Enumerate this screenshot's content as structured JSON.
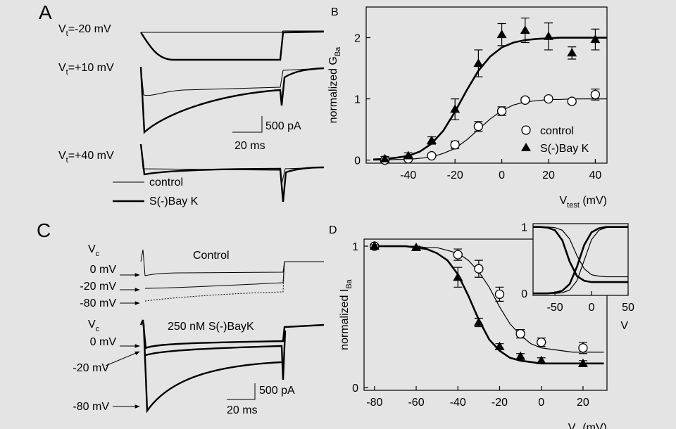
{
  "panel_a": {
    "label": "A",
    "traces": [
      {
        "symbol": "V",
        "subscript": "t",
        "text": "=-20 mV"
      },
      {
        "symbol": "V",
        "subscript": "t",
        "text": "=+10 mV"
      },
      {
        "symbol": "V",
        "subscript": "t",
        "text": "=+40 mV"
      }
    ],
    "legend": [
      "control",
      "S(-)Bay K"
    ],
    "scale": {
      "current": "500 pA",
      "time": "20 ms"
    }
  },
  "panel_c": {
    "label": "C",
    "groups": [
      {
        "symbol": "V",
        "subscript": "c",
        "title": "Control",
        "levels": [
          "0 mV",
          "-20 mV",
          "-80 mV"
        ]
      },
      {
        "symbol": "V",
        "subscript": "c",
        "title": "250 nM S(-)BayK",
        "levels": [
          "0 mV",
          "-20 mV",
          "-80 mV"
        ]
      }
    ],
    "scale": {
      "current": "500 pA",
      "time": "20 ms"
    }
  },
  "chart_data": [
    {
      "type": "scatter",
      "panel": "B",
      "x_label": {
        "text": "V",
        "subscript": "test",
        "suffix": " (mV)"
      },
      "y_label": {
        "text": "normalized G",
        "subscript": "Ba"
      },
      "xlim": [
        -58,
        45
      ],
      "xticks": [
        -40,
        -20,
        0,
        20,
        40
      ],
      "ylim": [
        -0.05,
        2.5
      ],
      "yticks": [
        0,
        1,
        2
      ],
      "series": [
        {
          "name": "control",
          "marker": "circle",
          "color": "#000000",
          "x": [
            -50,
            -40,
            -30,
            -20,
            -10,
            0,
            10,
            20,
            30,
            40
          ],
          "values": [
            0.0,
            0.02,
            0.07,
            0.25,
            0.55,
            0.8,
            0.98,
            1.0,
            0.96,
            1.07
          ],
          "errors": [
            0.03,
            0.02,
            0.03,
            0.06,
            0.08,
            0.07,
            0.04,
            0.03,
            0.04,
            0.09
          ]
        },
        {
          "name": "S(-)Bay K",
          "marker": "triangle",
          "color": "#000000",
          "x": [
            -50,
            -40,
            -30,
            -20,
            -10,
            0,
            10,
            20,
            30,
            40
          ],
          "values": [
            0.02,
            0.07,
            0.32,
            0.83,
            1.58,
            2.05,
            2.12,
            2.02,
            1.75,
            1.97
          ],
          "errors": [
            0.04,
            0.05,
            0.06,
            0.17,
            0.22,
            0.18,
            0.2,
            0.22,
            0.1,
            0.17
          ]
        }
      ],
      "fits": [
        {
          "line_width": 1.2,
          "x": [
            -55,
            -50,
            -45,
            -40,
            -35,
            -30,
            -25,
            -20,
            -15,
            -10,
            -5,
            0,
            5,
            10,
            15,
            20,
            25,
            30,
            35,
            40,
            45
          ],
          "values": [
            0.0,
            0.0,
            0.01,
            0.01,
            0.03,
            0.05,
            0.11,
            0.19,
            0.33,
            0.5,
            0.67,
            0.81,
            0.9,
            0.95,
            0.97,
            0.99,
            0.99,
            1.0,
            1.0,
            1.0,
            1.0
          ]
        },
        {
          "line_width": 2.6,
          "x": [
            -55,
            -50,
            -45,
            -40,
            -35,
            -30,
            -25,
            -20,
            -15,
            -10,
            -5,
            0,
            5,
            10,
            15,
            20,
            25,
            30,
            35,
            40,
            45
          ],
          "values": [
            0.01,
            0.02,
            0.04,
            0.07,
            0.14,
            0.27,
            0.48,
            0.79,
            1.14,
            1.46,
            1.69,
            1.84,
            1.92,
            1.96,
            1.98,
            1.99,
            2.0,
            2.0,
            2.0,
            2.0,
            2.0
          ]
        }
      ]
    },
    {
      "type": "scatter",
      "panel": "D",
      "x_label": {
        "text": "V",
        "subscript": "c",
        "suffix": " (mV)"
      },
      "y_label": {
        "text": "normalized I",
        "subscript": "Ba"
      },
      "xlim": [
        -85,
        31.5
      ],
      "xticks": [
        -80,
        -60,
        -40,
        -20,
        0,
        20
      ],
      "ylim": [
        -0.02,
        1.05
      ],
      "yticks": [
        0,
        1
      ],
      "series": [
        {
          "marker": "circle",
          "color": "#000000",
          "x": [
            -80,
            -40,
            -30,
            -20,
            -10,
            0,
            20
          ],
          "values": [
            1.0,
            0.94,
            0.84,
            0.66,
            0.38,
            0.32,
            0.28
          ],
          "errors": [
            0.01,
            0.04,
            0.06,
            0.05,
            0.03,
            0.03,
            0.04
          ]
        },
        {
          "marker": "triangle",
          "color": "#000000",
          "x": [
            -80,
            -60,
            -40,
            -30,
            -20,
            -10,
            0,
            20
          ],
          "values": [
            1.0,
            0.99,
            0.78,
            0.46,
            0.29,
            0.22,
            0.19,
            0.17
          ],
          "errors": [
            0.01,
            0.01,
            0.07,
            0.03,
            0.02,
            0.02,
            0.02,
            0.02
          ]
        }
      ],
      "fits": [
        {
          "line_width": 1.2,
          "x": [
            -80,
            -75,
            -70,
            -65,
            -60,
            -55,
            -50,
            -45,
            -40,
            -35,
            -30,
            -25,
            -20,
            -15,
            -10,
            -5,
            0,
            5,
            10,
            15,
            20,
            25,
            30
          ],
          "values": [
            1.0,
            1.0,
            1.0,
            1.0,
            1.0,
            0.99,
            0.99,
            0.97,
            0.95,
            0.9,
            0.82,
            0.71,
            0.57,
            0.45,
            0.37,
            0.31,
            0.28,
            0.27,
            0.26,
            0.25,
            0.25,
            0.25,
            0.25
          ]
        },
        {
          "line_width": 2.6,
          "x": [
            -80,
            -75,
            -70,
            -65,
            -60,
            -55,
            -50,
            -45,
            -40,
            -35,
            -30,
            -25,
            -20,
            -15,
            -10,
            -5,
            0,
            5,
            10,
            15,
            20,
            25,
            30
          ],
          "values": [
            1.0,
            1.0,
            1.0,
            1.0,
            0.99,
            0.98,
            0.95,
            0.9,
            0.8,
            0.65,
            0.48,
            0.34,
            0.26,
            0.21,
            0.19,
            0.18,
            0.17,
            0.17,
            0.17,
            0.17,
            0.17,
            0.17,
            0.17
          ]
        }
      ]
    },
    {
      "type": "line",
      "x_label": {
        "text": "V"
      },
      "xlim": [
        -80,
        50
      ],
      "xticks": [
        -50,
        0,
        50
      ],
      "ylim": [
        -0.03,
        1.05
      ],
      "yticks": [
        0,
        1
      ],
      "series": [
        {
          "line_width": 1.2,
          "color": "#000000",
          "x": [
            -80,
            -70,
            -60,
            -50,
            -40,
            -30,
            -20,
            -10,
            0,
            10,
            20,
            30,
            40,
            50
          ],
          "values": [
            0,
            0,
            0,
            0,
            0.01,
            0.05,
            0.19,
            0.5,
            0.81,
            0.95,
            0.99,
            1,
            1,
            1
          ]
        },
        {
          "line_width": 2.6,
          "color": "#000000",
          "x": [
            -80,
            -70,
            -60,
            -50,
            -40,
            -30,
            -20,
            -10,
            0,
            10,
            20,
            30,
            40,
            50
          ],
          "values": [
            0,
            0,
            0,
            0.01,
            0.04,
            0.14,
            0.4,
            0.73,
            0.92,
            0.98,
            1,
            1,
            1,
            1
          ]
        },
        {
          "line_width": 1.2,
          "color": "#000000",
          "x": [
            -80,
            -70,
            -60,
            -50,
            -40,
            -30,
            -20,
            -10,
            0,
            10,
            20,
            30,
            40,
            50
          ],
          "values": [
            1,
            1,
            1,
            0.99,
            0.95,
            0.82,
            0.57,
            0.37,
            0.28,
            0.26,
            0.25,
            0.25,
            0.25,
            0.25
          ]
        },
        {
          "line_width": 2.6,
          "color": "#000000",
          "x": [
            -80,
            -70,
            -60,
            -50,
            -40,
            -30,
            -20,
            -10,
            0,
            10,
            20,
            30,
            40,
            50
          ],
          "values": [
            1,
            1,
            0.99,
            0.95,
            0.8,
            0.48,
            0.26,
            0.19,
            0.17,
            0.17,
            0.17,
            0.17,
            0.17,
            0.17
          ]
        }
      ]
    }
  ]
}
